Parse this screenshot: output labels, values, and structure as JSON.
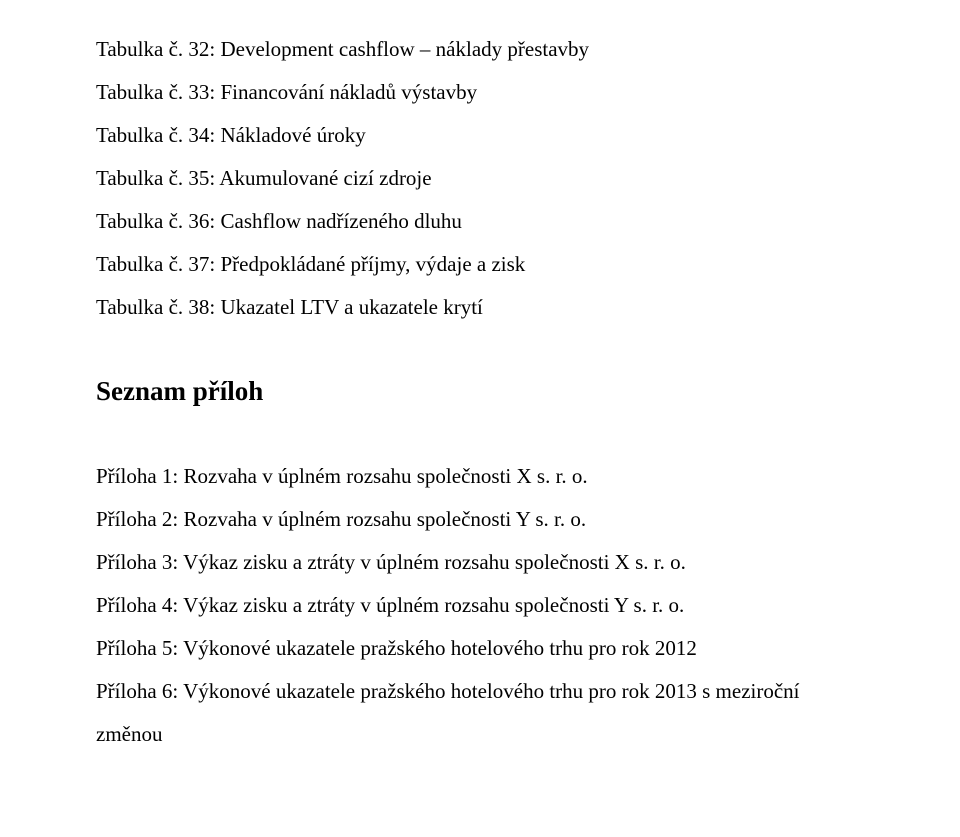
{
  "tables": [
    "Tabulka č. 32: Development cashflow – náklady přestavby",
    "Tabulka č. 33: Financování nákladů výstavby",
    "Tabulka č. 34: Nákladové úroky",
    "Tabulka č. 35: Akumulované cizí zdroje",
    "Tabulka č. 36: Cashflow nadřízeného dluhu",
    "Tabulka č. 37: Předpokládané příjmy, výdaje a zisk",
    "Tabulka č. 38: Ukazatel LTV a ukazatele krytí"
  ],
  "appendix_heading": "Seznam příloh",
  "appendices": [
    "Příloha 1: Rozvaha v úplném rozsahu společnosti X s. r. o.",
    "Příloha 2: Rozvaha v úplném rozsahu společnosti Y s. r. o.",
    "Příloha 3: Výkaz zisku a ztráty v úplném rozsahu společnosti X s. r. o.",
    "Příloha 4: Výkaz zisku a ztráty v úplném rozsahu společnosti Y s. r. o.",
    "Příloha 5: Výkonové ukazatele pražského hotelového trhu pro rok 2012",
    "Příloha 6: Výkonové ukazatele pražského hotelového trhu pro rok 2013 s meziroční změnou"
  ]
}
